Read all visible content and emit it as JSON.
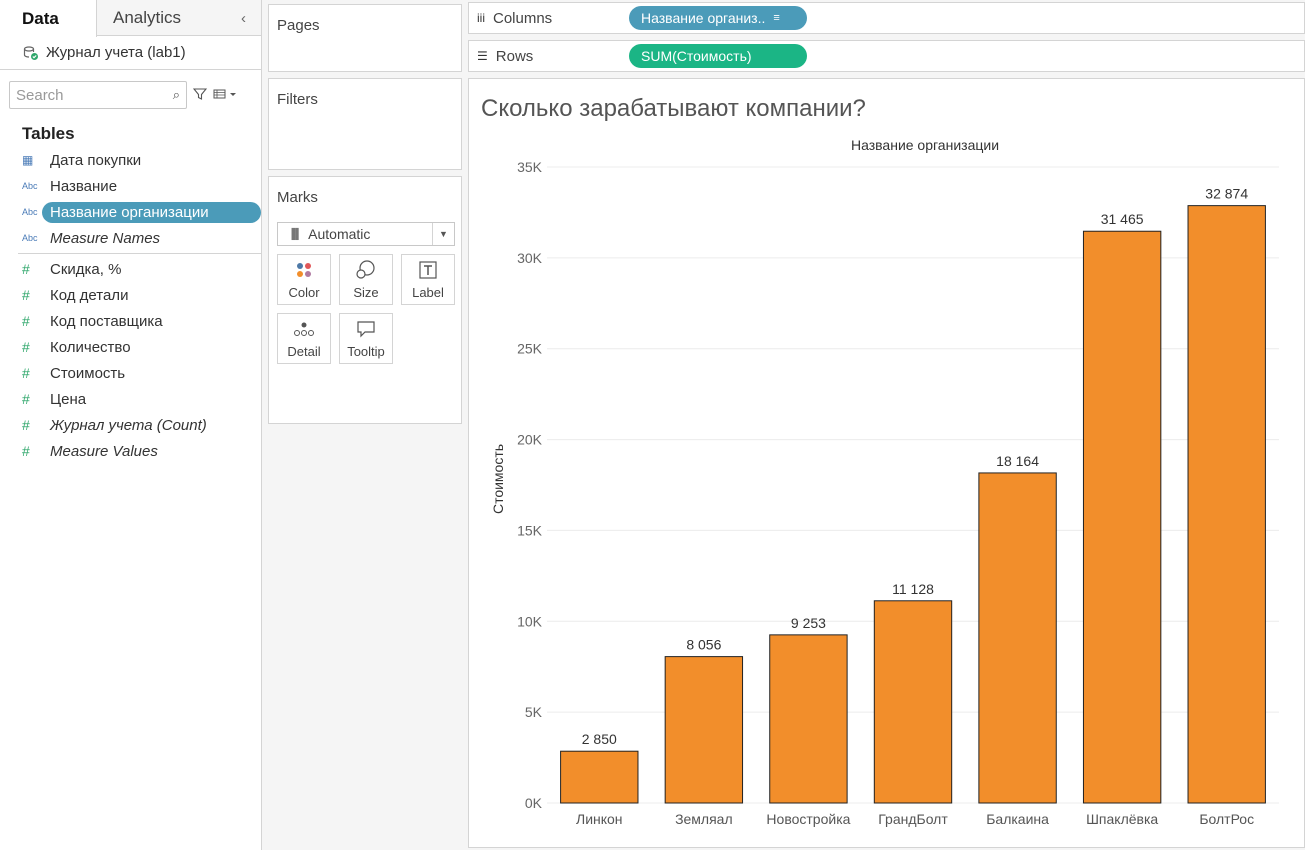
{
  "left_pane": {
    "tab_data": "Data",
    "tab_analytics": "Analytics",
    "collapse": "‹",
    "datasource": "Журнал учета (lab1)",
    "search_placeholder": "Search",
    "tables_heading": "Tables",
    "dimensions": [
      {
        "type": "calendar-icon",
        "type_glyph": "▦",
        "label": "Дата покупки"
      },
      {
        "type": "abc-icon",
        "type_glyph": "Abc",
        "label": "Название"
      },
      {
        "type": "abc-icon",
        "type_glyph": "Abc",
        "label": "Название организации",
        "selected": true
      },
      {
        "type": "abc-icon",
        "type_glyph": "Abc",
        "label": "Measure Names",
        "italic": true
      }
    ],
    "measures": [
      {
        "type_glyph": "#",
        "label": "Скидка, %"
      },
      {
        "type_glyph": "#",
        "label": "Код детали"
      },
      {
        "type_glyph": "#",
        "label": "Код поставщика"
      },
      {
        "type_glyph": "#",
        "label": "Количество"
      },
      {
        "type_glyph": "#",
        "label": "Стоимость"
      },
      {
        "type_glyph": "#",
        "label": "Цена"
      },
      {
        "type_glyph": "#",
        "label": "Журнал учета (Count)",
        "italic": true
      },
      {
        "type_glyph": "#",
        "label": "Measure Values",
        "italic": true
      }
    ]
  },
  "cards": {
    "pages": "Pages",
    "filters": "Filters",
    "marks": "Marks",
    "mark_type": "Automatic",
    "buttons": [
      "Color",
      "Size",
      "Label",
      "Detail",
      "Tooltip"
    ]
  },
  "shelves": {
    "columns_label": "Columns",
    "columns_pill": "Название организ..",
    "rows_label": "Rows",
    "rows_pill": "SUM(Стоимость)"
  },
  "viz": {
    "title": "Сколько зарабатывают компании?"
  },
  "colors": {
    "bar": "#f28e2b",
    "dimension_pill": "#4b9bb9",
    "measure_pill": "#1bb585"
  },
  "chart_data": {
    "type": "bar",
    "title": "Сколько зарабатывают компании?",
    "xlabel": "Название организации",
    "ylabel": "Стоимость",
    "categories": [
      "Линкон",
      "Земляал",
      "Новостройка",
      "ГрандБолт",
      "Балкаина",
      "Шпаклёвка",
      "БолтРос"
    ],
    "values": [
      2850,
      8056,
      9253,
      11128,
      18164,
      31465,
      32874
    ],
    "value_labels": [
      "2 850",
      "8 056",
      "9 253",
      "11 128",
      "18 164",
      "31 465",
      "32 874"
    ],
    "ylim": [
      0,
      35000
    ],
    "yticks": [
      0,
      5000,
      10000,
      15000,
      20000,
      25000,
      30000,
      35000
    ],
    "ytick_labels": [
      "0K",
      "5K",
      "10K",
      "15K",
      "20K",
      "25K",
      "30K",
      "35K"
    ],
    "grid": true,
    "legend": "none"
  }
}
